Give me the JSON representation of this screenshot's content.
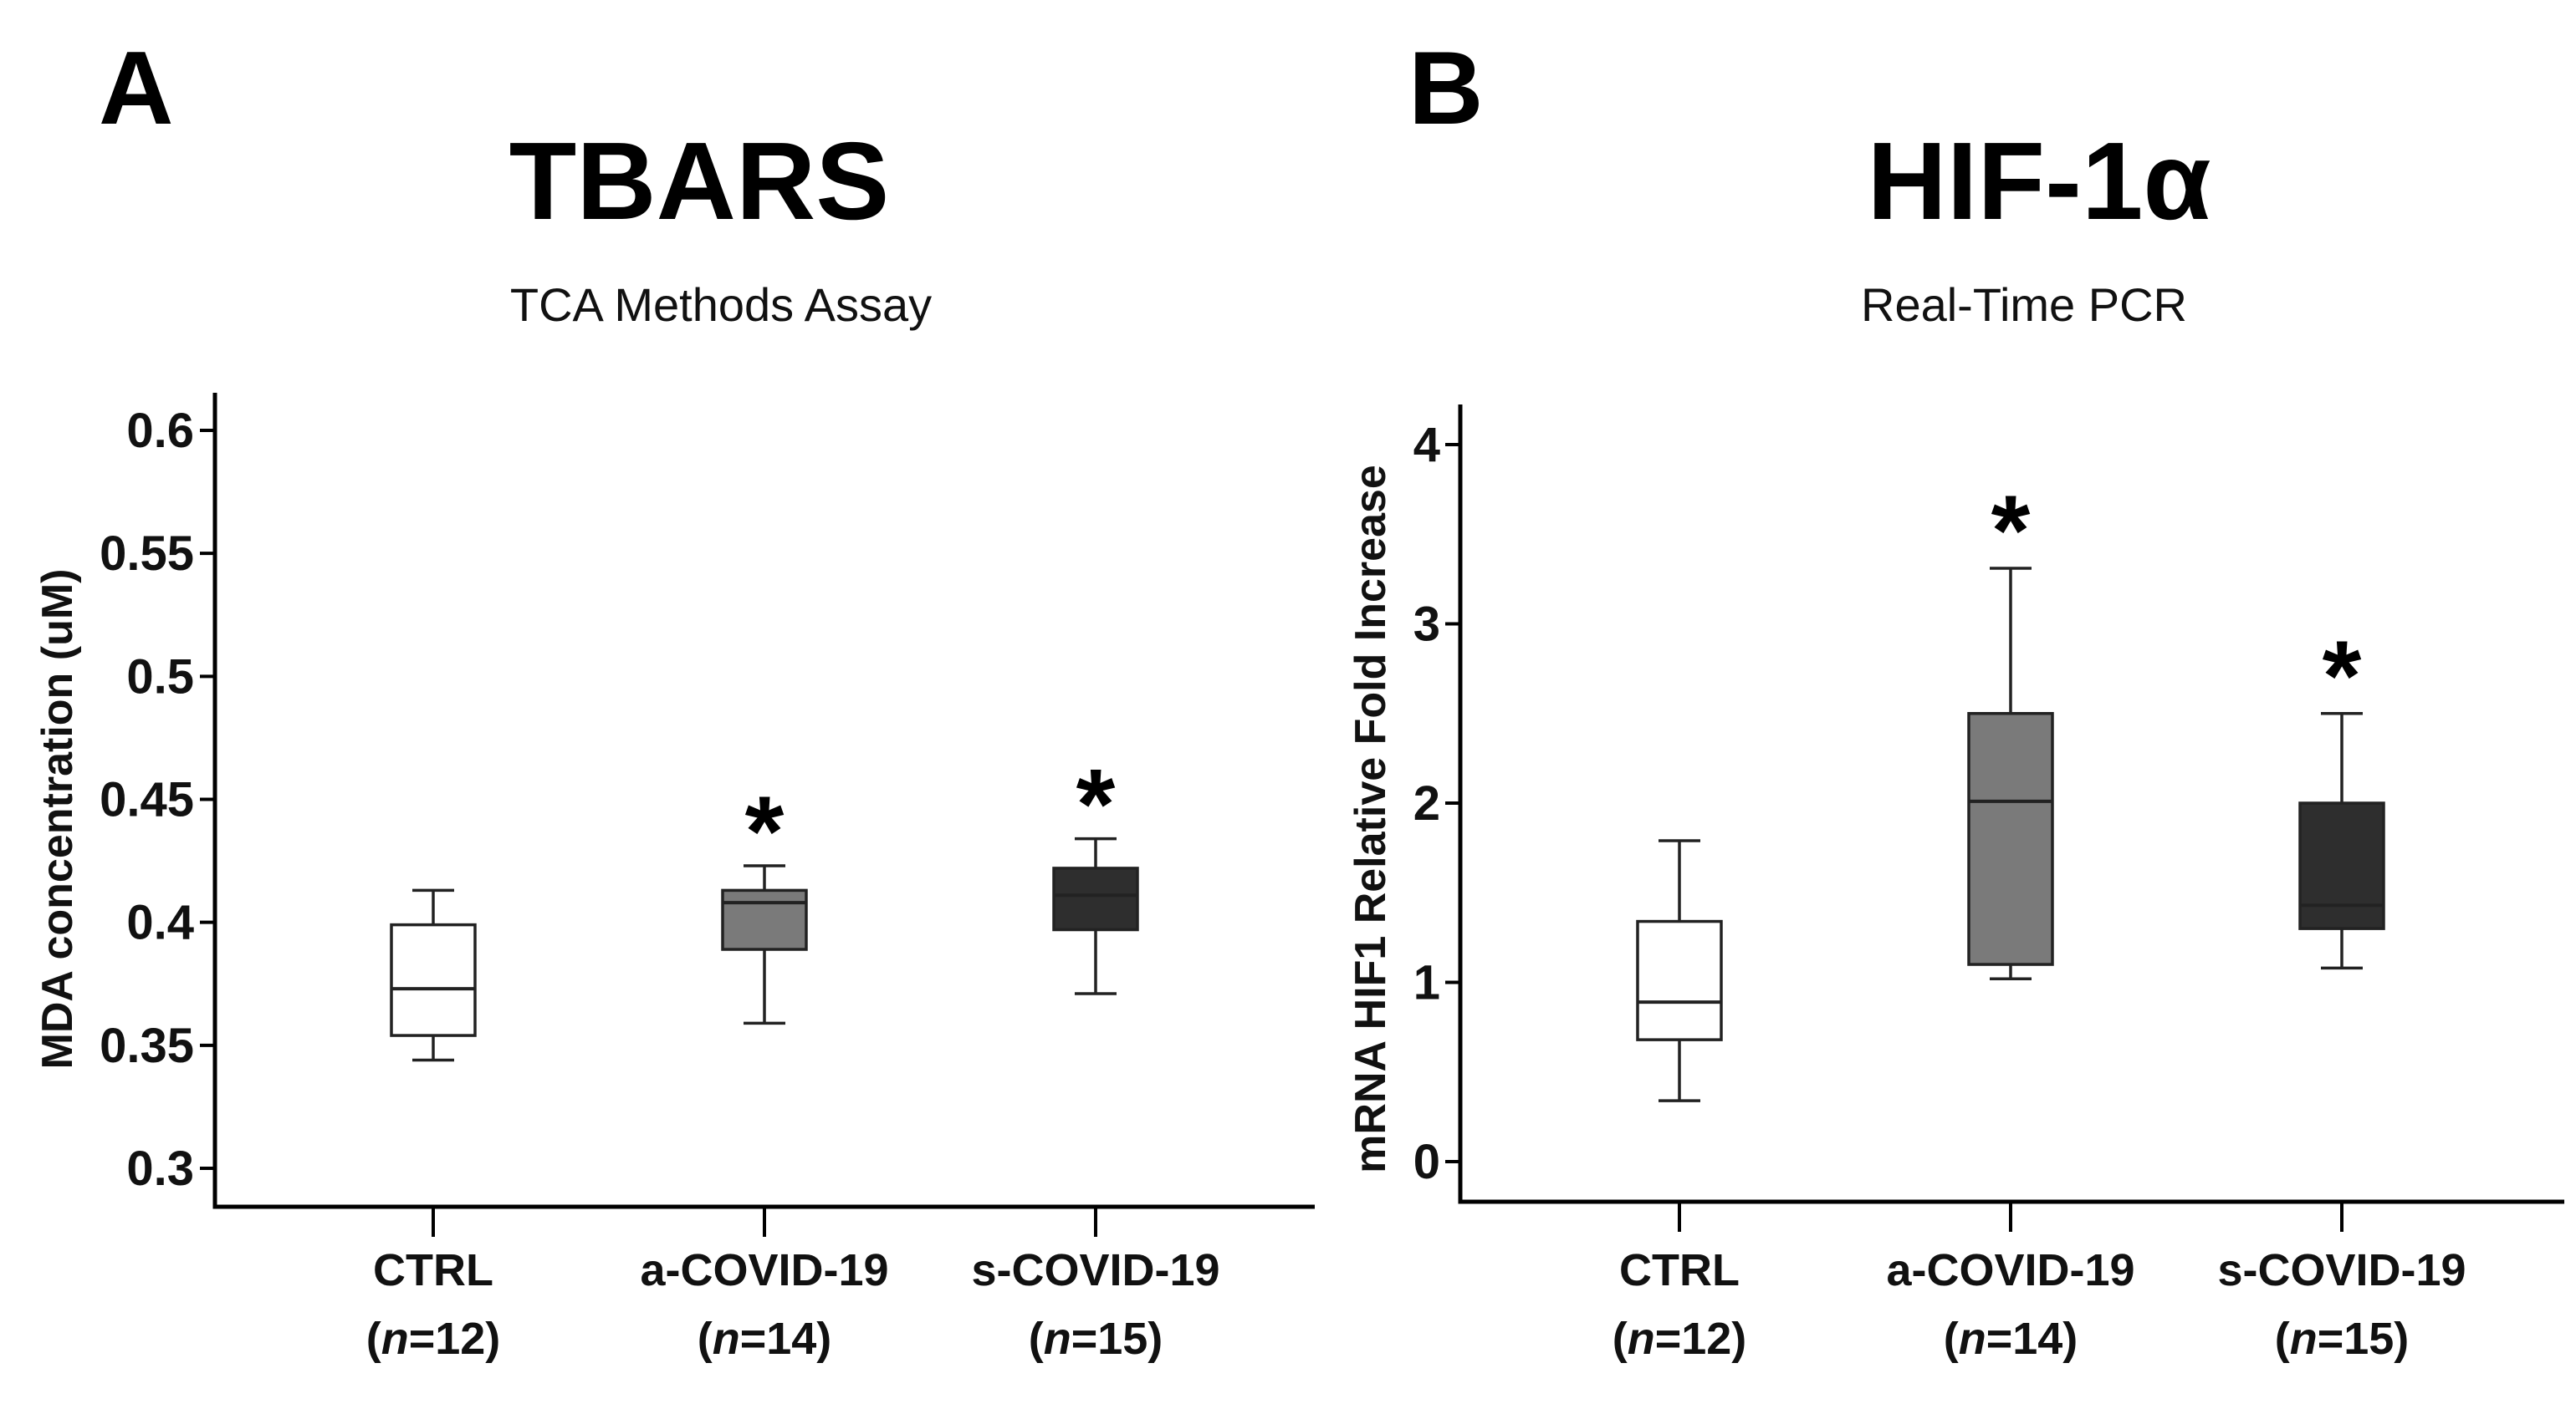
{
  "panels": [
    {
      "letter": "A",
      "title": "TBARS",
      "subtitle": "TCA Methods Assay"
    },
    {
      "letter": "B",
      "title": "HIF-1α",
      "subtitle": "Real-Time PCR"
    }
  ],
  "chart_data": [
    {
      "type": "box",
      "title": "TBARS",
      "subtitle": "TCA Methods Assay",
      "ylabel": "MDA concentration (uM)",
      "ylim": [
        0.29,
        0.62
      ],
      "yticks": [
        0.3,
        0.35,
        0.4,
        0.45,
        0.5,
        0.55,
        0.6
      ],
      "ytick_labels": [
        "0.3",
        "0.35",
        "0.4",
        "0.45",
        "0.5",
        "0.55",
        "0.6"
      ],
      "categories": [
        {
          "name": "CTRL",
          "n_prefix": "(",
          "n_italic": "n",
          "n_suffix": "=12)"
        },
        {
          "name": "a-COVID-19",
          "n_prefix": "(",
          "n_italic": "n",
          "n_suffix": "=14)"
        },
        {
          "name": "s-COVID-19",
          "n_prefix": "(",
          "n_italic": "n",
          "n_suffix": "=15)"
        }
      ],
      "boxes": [
        {
          "min": 0.344,
          "q1": 0.354,
          "median": 0.373,
          "q3": 0.399,
          "max": 0.413,
          "fill": "#ffffff",
          "significant": false
        },
        {
          "min": 0.359,
          "q1": 0.389,
          "median": 0.408,
          "q3": 0.413,
          "max": 0.423,
          "fill": "#7a7a7a",
          "significant": true
        },
        {
          "min": 0.371,
          "q1": 0.397,
          "median": 0.411,
          "q3": 0.422,
          "max": 0.434,
          "fill": "#2e2e2e",
          "significant": true
        }
      ],
      "significance_marker": "*"
    },
    {
      "type": "box",
      "title": "HIF-1α",
      "subtitle": "Real-Time PCR",
      "ylabel": "mRNA HIF1 Relative Fold Increase",
      "ylim": [
        -0.25,
        4.2
      ],
      "yticks": [
        0,
        1,
        2,
        3,
        4
      ],
      "ytick_labels": [
        "0",
        "1",
        "2",
        "3",
        "4"
      ],
      "categories": [
        {
          "name": "CTRL",
          "n_prefix": "(",
          "n_italic": "n",
          "n_suffix": "=12)"
        },
        {
          "name": "a-COVID-19",
          "n_prefix": "(",
          "n_italic": "n",
          "n_suffix": "=14)"
        },
        {
          "name": "s-COVID-19",
          "n_prefix": "(",
          "n_italic": "n",
          "n_suffix": "=15)"
        }
      ],
      "boxes": [
        {
          "min": 0.34,
          "q1": 0.68,
          "median": 0.89,
          "q3": 1.34,
          "max": 1.79,
          "fill": "#ffffff",
          "significant": false
        },
        {
          "min": 1.02,
          "q1": 1.1,
          "median": 2.01,
          "q3": 2.5,
          "max": 3.31,
          "fill": "#7a7a7a",
          "significant": true
        },
        {
          "min": 1.08,
          "q1": 1.3,
          "median": 1.43,
          "q3": 2.0,
          "max": 2.5,
          "fill": "#2e2e2e",
          "significant": true
        }
      ],
      "significance_marker": "*"
    }
  ]
}
